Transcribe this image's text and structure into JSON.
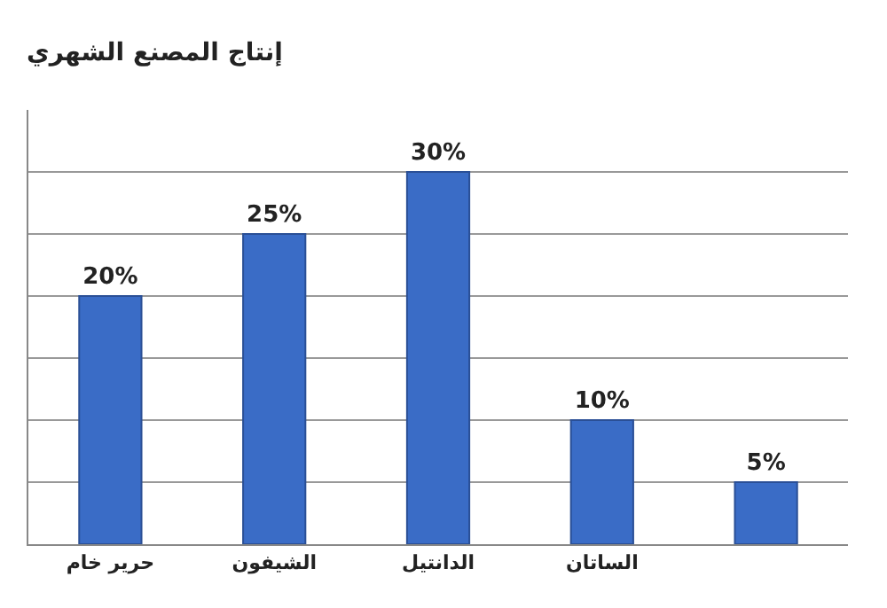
{
  "chart_data": {
    "type": "bar",
    "title": "إنتاج المصنع الشهري",
    "categories": [
      "حرير خام",
      "الشيفون",
      "الدانتيل",
      "الساتان",
      null
    ],
    "values": [
      20,
      25,
      30,
      10,
      5
    ],
    "value_labels": [
      "20%",
      "25%",
      "30%",
      "10%",
      "5%"
    ],
    "color": "#3a6cc6",
    "ylim": [
      0,
      35
    ],
    "yticks": [
      {
        "value": 0,
        "label": null
      },
      {
        "value": 5,
        "label": null
      },
      {
        "value": 10,
        "label": null
      },
      {
        "value": 15,
        "label": null
      },
      {
        "value": 20,
        "label": null
      },
      {
        "value": 25,
        "label": null
      },
      {
        "value": 30,
        "label": null
      }
    ],
    "grid": "y",
    "tick_labels": "x"
  }
}
